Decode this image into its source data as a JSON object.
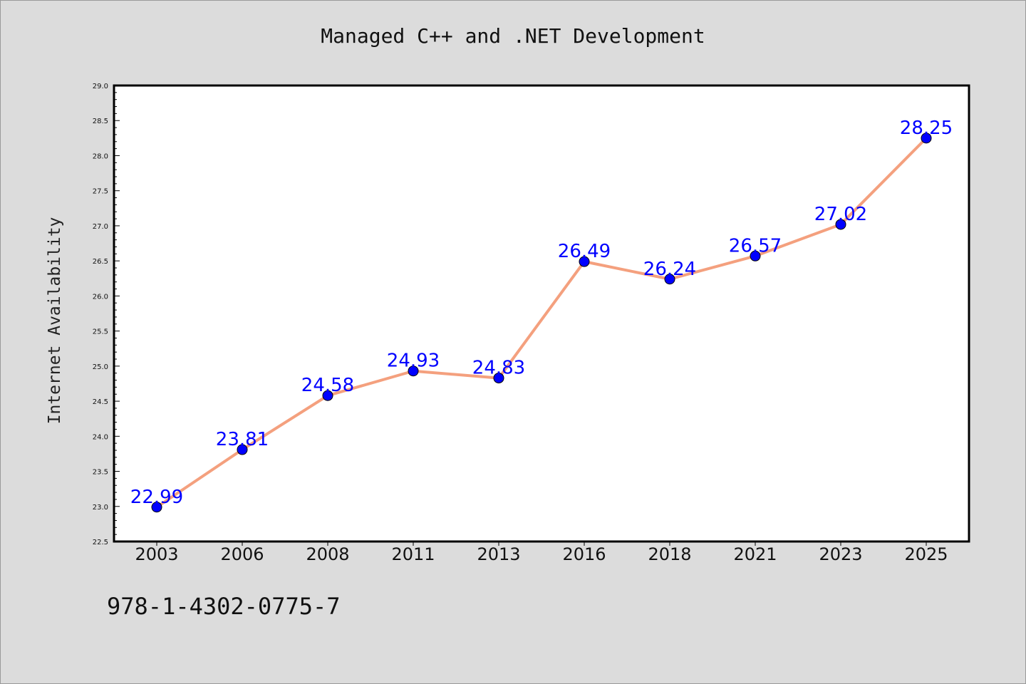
{
  "chart_data": {
    "type": "line",
    "title": "Managed C++ and .NET Development",
    "xlabel": "",
    "ylabel": "Internet Availability",
    "categories": [
      "2003",
      "2006",
      "2008",
      "2011",
      "2013",
      "2016",
      "2018",
      "2021",
      "2023",
      "2025"
    ],
    "series": [
      {
        "values": [
          22.99,
          23.81,
          24.58,
          24.93,
          24.83,
          26.49,
          26.24,
          26.57,
          27.02,
          28.25
        ],
        "line_color": "#f4a07e",
        "marker_color": "#0000ff",
        "label_color": "#0000ff"
      }
    ],
    "data_labels": [
      "22.99",
      "23.81",
      "24.58",
      "24.93",
      "24.83",
      "26.49",
      "26.24",
      "26.57",
      "27.02",
      "28.25"
    ],
    "ylim": [
      22.5,
      29.0
    ],
    "yticks": [
      "22.5",
      "23.0",
      "23.5",
      "24.0",
      "24.5",
      "25.0",
      "25.5",
      "26.0",
      "26.5",
      "27.0",
      "27.5",
      "28.0",
      "28.5",
      "29.0"
    ],
    "grid": false,
    "legend": "none",
    "plot_background": "#ffffff",
    "figure_background": "#dcdcdc"
  },
  "footer": {
    "isbn": "978-1-4302-0775-7"
  }
}
